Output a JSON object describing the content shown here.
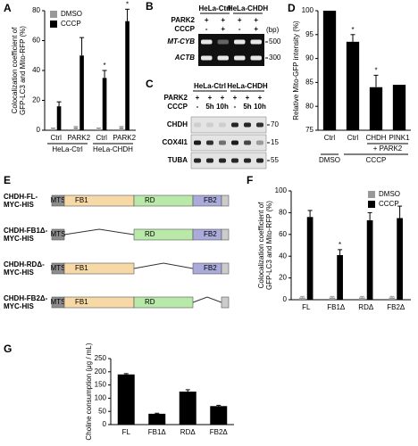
{
  "panel_labels": [
    "A",
    "B",
    "C",
    "D",
    "E",
    "F",
    "G"
  ],
  "chart_data": [
    {
      "type": "bar",
      "ylabel": [
        "Colocalization coefficient of",
        "GFP-LC3 and Mito-RFP (%)"
      ],
      "categories": [
        "Ctrl",
        "PARK2",
        "Ctrl",
        "PARK2"
      ],
      "groups": [
        "HeLa-Ctrl",
        "HeLa-CHDH"
      ],
      "series": [
        {
          "name": "DMSO",
          "color": "#999999",
          "values": [
            1,
            2,
            1,
            2
          ],
          "errors": [
            0.5,
            0.5,
            0.5,
            0.5
          ]
        },
        {
          "name": "CCCP",
          "color": "#000000",
          "values": [
            16,
            50,
            35,
            73
          ],
          "errors": [
            3,
            12,
            5,
            8
          ]
        }
      ],
      "significance": [
        null,
        null,
        "*",
        "*"
      ],
      "ylim": [
        0,
        80
      ],
      "yticks": [
        0,
        20,
        40,
        60,
        80
      ],
      "legend": "upper left"
    },
    {
      "type": "bar",
      "ylabel": [
        "Relative Mito-GFP intensity (%)"
      ],
      "categories": [
        "Ctrl",
        "Ctrl",
        "CHDH",
        "PINK1"
      ],
      "groups": [
        "DMSO",
        "CCCP"
      ],
      "subgroup": "+ PARK2",
      "values": [
        100,
        93.5,
        84,
        84.5
      ],
      "errors": [
        null,
        1.5,
        2.5,
        null
      ],
      "color": "#000000",
      "significance": [
        null,
        "*",
        "*",
        null
      ],
      "ylim": [
        75,
        100
      ],
      "yticks": [
        75,
        80,
        85,
        90,
        95,
        100
      ]
    },
    {
      "type": "bar",
      "ylabel": [
        "Colocalization coefficient of",
        "GFP-LC3 and Mito-RFP (%)"
      ],
      "categories": [
        "FL",
        "FB1Δ",
        "RDΔ",
        "FB2Δ"
      ],
      "series": [
        {
          "name": "DMSO",
          "color": "#999999",
          "values": [
            2,
            2,
            2,
            2
          ],
          "errors": [
            1,
            1,
            1,
            1
          ]
        },
        {
          "name": "CCCP",
          "color": "#000000",
          "values": [
            76,
            41,
            73,
            75
          ],
          "errors": [
            6,
            5,
            7,
            11
          ]
        }
      ],
      "significance": [
        null,
        "*",
        null,
        null
      ],
      "ylim": [
        0,
        100
      ],
      "yticks": [
        0,
        20,
        40,
        60,
        80,
        100
      ],
      "legend": "upper right"
    },
    {
      "type": "bar",
      "ylabel": [
        "Choline consumption (μg / mL)"
      ],
      "categories": [
        "FL",
        "FB1Δ",
        "RDΔ",
        "FB2Δ"
      ],
      "values": [
        190,
        41,
        125,
        70
      ],
      "errors": [
        3,
        2,
        7,
        3
      ],
      "color": "#000000",
      "ylim": [
        0,
        250
      ],
      "yticks": [
        0,
        50,
        100,
        150,
        200,
        250
      ]
    }
  ],
  "blot_b": {
    "groups": [
      "HeLa-Ctrl",
      "HeLa-CHDH"
    ],
    "rows": [
      {
        "label": "PARK2",
        "lanes": [
          "+",
          "+",
          "+",
          "+"
        ]
      },
      {
        "label": "CCCP",
        "lanes": [
          "-",
          "+",
          "-",
          "+"
        ]
      }
    ],
    "bands": [
      "MT-CYB",
      "ACTB"
    ],
    "size_unit": "(bp)",
    "sizes": [
      500,
      300
    ]
  },
  "blot_c": {
    "groups": [
      "HeLa-Ctrl",
      "HeLa-CHDH"
    ],
    "rows": [
      {
        "label": "PARK2",
        "lanes": [
          "+",
          "+",
          "+",
          "+",
          "+",
          "+"
        ]
      },
      {
        "label": "CCCP",
        "lanes": [
          "-",
          "5h",
          "10h",
          "-",
          "5h",
          "10h"
        ]
      }
    ],
    "bands": [
      "CHDH",
      "COX4I1",
      "TUBA"
    ],
    "sizes": [
      70,
      15,
      55
    ]
  },
  "diagram_e": {
    "constructs": [
      {
        "name": [
          "CHDH-FL-",
          "MYC-HIS"
        ],
        "domains": [
          "MTS",
          "FB1",
          "RD",
          "FB2"
        ]
      },
      {
        "name": [
          "CHDH-FB1Δ-",
          "MYC-HIS"
        ],
        "domains": [
          "MTS",
          "RD",
          "FB2"
        ]
      },
      {
        "name": [
          "CHDH-RDΔ-",
          "MYC-HIS"
        ],
        "domains": [
          "MTS",
          "FB1",
          "FB2"
        ]
      },
      {
        "name": [
          "CHDH-FB2Δ-",
          "MYC-HIS"
        ],
        "domains": [
          "MTS",
          "FB1",
          "RD"
        ]
      }
    ]
  }
}
